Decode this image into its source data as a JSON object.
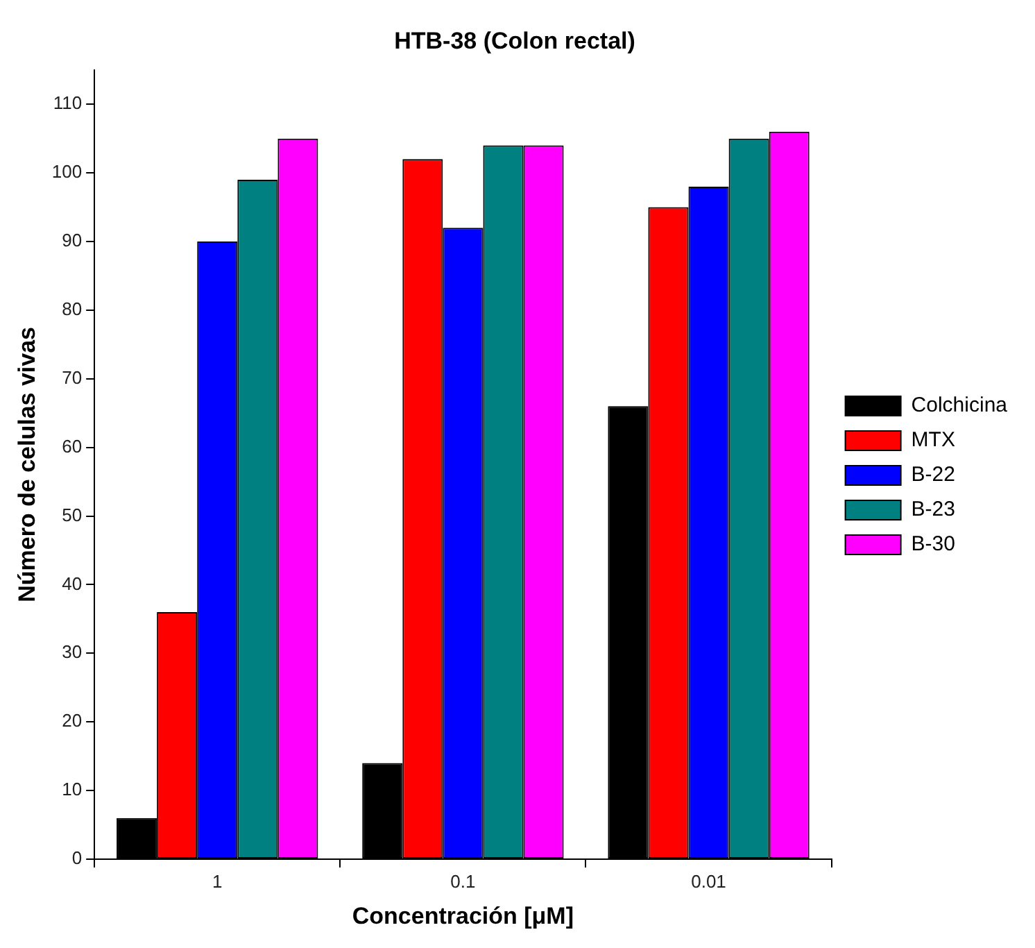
{
  "chart_data": {
    "type": "bar",
    "title": "HTB-38 (Colon rectal)",
    "xlabel": "Concentración [μM]",
    "ylabel": "Número de celulas vivas",
    "categories": [
      "1",
      "0.1",
      "0.01"
    ],
    "series": [
      {
        "name": "Colchicina",
        "color": "#000000",
        "values": [
          6,
          14,
          66
        ]
      },
      {
        "name": "MTX",
        "color": "#ff0000",
        "values": [
          36,
          102,
          95
        ]
      },
      {
        "name": "B-22",
        "color": "#0000ff",
        "values": [
          90,
          92,
          98
        ]
      },
      {
        "name": "B-23",
        "color": "#008080",
        "values": [
          99,
          104,
          105
        ]
      },
      {
        "name": "B-30",
        "color": "#ff00ff",
        "values": [
          105,
          104,
          106
        ]
      }
    ],
    "ylim": [
      0,
      115
    ],
    "yticks": [
      0,
      10,
      20,
      30,
      40,
      50,
      60,
      70,
      80,
      90,
      100,
      110
    ],
    "grid": false,
    "legend": "right"
  }
}
